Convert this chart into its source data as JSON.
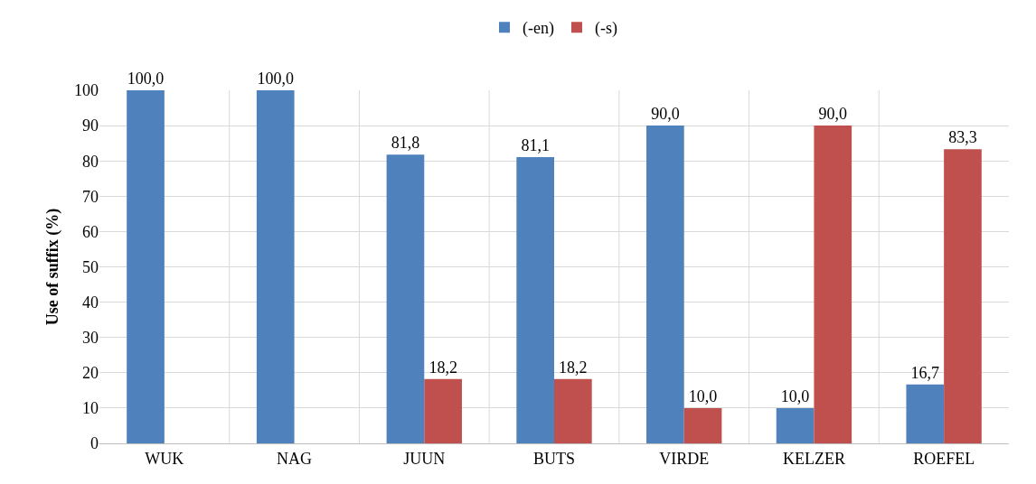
{
  "chart_data": {
    "type": "bar",
    "ylabel": "Use of suffix (%)",
    "categories": [
      "WUK",
      "NAG",
      "JUUN",
      "BUTS",
      "VIRDE",
      "KELZER",
      "ROEFEL"
    ],
    "series": [
      {
        "name": "(-en)",
        "color": "#4f81bd",
        "values": [
          100,
          100,
          81.8,
          81.1,
          90,
          10,
          16.7
        ],
        "value_labels": [
          "100,0",
          "100,0",
          "81,8",
          "81,1",
          "90,0",
          "10,0",
          "16,7"
        ]
      },
      {
        "name": "(-s)",
        "color": "#c0504d",
        "values": [
          null,
          null,
          18.2,
          18.2,
          10,
          90,
          83.3
        ],
        "value_labels": [
          null,
          null,
          "18,2",
          "18,2",
          "10,0",
          "90,0",
          "83,3"
        ]
      }
    ],
    "ylim": [
      0,
      100
    ],
    "yticks": [
      0,
      10,
      20,
      30,
      40,
      50,
      60,
      70,
      80,
      90,
      100
    ],
    "grid": true,
    "legend": "top"
  }
}
